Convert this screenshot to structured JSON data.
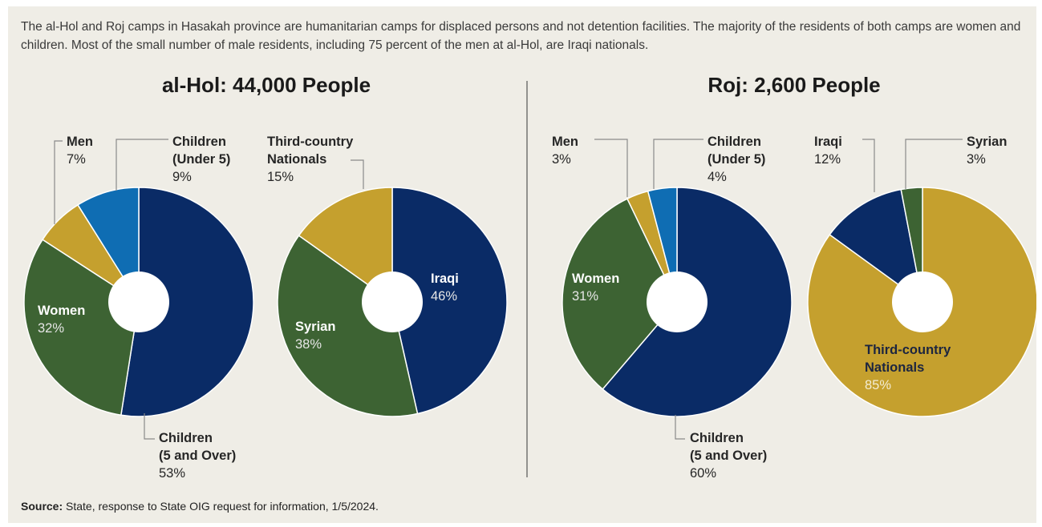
{
  "intro_text": "The al-Hol and Roj camps in Hasakah province are humanitarian camps for displaced persons and not detention facilities. The majority of the residents of both camps are women and children.  Most of the small number of male residents, including 75 percent of the men at al-Hol, are Iraqi nationals.",
  "source": {
    "label": "Source:",
    "text": " State, response to State OIG request for information, 1/5/2024."
  },
  "colors": {
    "navy": "#0a2b66",
    "blue": "#0f6db3",
    "gold": "#c5a02e",
    "green": "#3d6333",
    "divider": "#555555"
  },
  "chart_data": [
    {
      "type": "pie",
      "title": "al-Hol: 44,000 People",
      "subtitle": "",
      "slices": [
        {
          "label": "Children (5 and Over)",
          "value": 53,
          "pct": "53%",
          "color": "#0a2b66"
        },
        {
          "label": "Women",
          "value": 32,
          "pct": "32%",
          "color": "#3d6333"
        },
        {
          "label": "Men",
          "value": 7,
          "pct": "7%",
          "color": "#c5a02e"
        },
        {
          "label": "Children (Under 5)",
          "value": 9,
          "pct": "9%",
          "color": "#0f6db3"
        }
      ]
    },
    {
      "type": "pie",
      "title": "",
      "subtitle": "",
      "slices": [
        {
          "label": "Iraqi",
          "value": 46,
          "pct": "46%",
          "color": "#0a2b66"
        },
        {
          "label": "Syrian",
          "value": 38,
          "pct": "38%",
          "color": "#3d6333"
        },
        {
          "label": "Third-country Nationals",
          "value": 15,
          "pct": "15%",
          "color": "#c5a02e"
        }
      ]
    },
    {
      "type": "pie",
      "title": "Roj: 2,600 People",
      "subtitle": "",
      "slices": [
        {
          "label": "Children (5 and Over)",
          "value": 60,
          "pct": "60%",
          "color": "#0a2b66"
        },
        {
          "label": "Women",
          "value": 31,
          "pct": "31%",
          "color": "#3d6333"
        },
        {
          "label": "Men",
          "value": 3,
          "pct": "3%",
          "color": "#c5a02e"
        },
        {
          "label": "Children (Under 5)",
          "value": 4,
          "pct": "4%",
          "color": "#0f6db3"
        }
      ]
    },
    {
      "type": "pie",
      "title": "",
      "subtitle": "",
      "slices": [
        {
          "label": "Third-country Nationals",
          "value": 85,
          "pct": "85%",
          "color": "#c5a02e"
        },
        {
          "label": "Iraqi",
          "value": 12,
          "pct": "12%",
          "color": "#0a2b66"
        },
        {
          "label": "Syrian",
          "value": 3,
          "pct": "3%",
          "color": "#3d6333"
        }
      ]
    }
  ],
  "labels": {
    "alhol_men": [
      "Men"
    ],
    "alhol_u5": [
      "Children",
      "(Under 5)"
    ],
    "alhol_women": [
      "Women"
    ],
    "alhol_o5": [
      "Children",
      "(5 and Over)"
    ],
    "alhol_third": [
      "Third-country",
      "Nationals"
    ],
    "alhol_iraqi": [
      "Iraqi"
    ],
    "alhol_syrian": [
      "Syrian"
    ],
    "roj_men": [
      "Men"
    ],
    "roj_u5": [
      "Children",
      "(Under 5)"
    ],
    "roj_women": [
      "Women"
    ],
    "roj_o5": [
      "Children",
      "(5 and Over)"
    ],
    "roj_iraqi": [
      "Iraqi"
    ],
    "roj_syrian": [
      "Syrian"
    ],
    "roj_third": [
      "Third-country",
      "Nationals"
    ]
  }
}
